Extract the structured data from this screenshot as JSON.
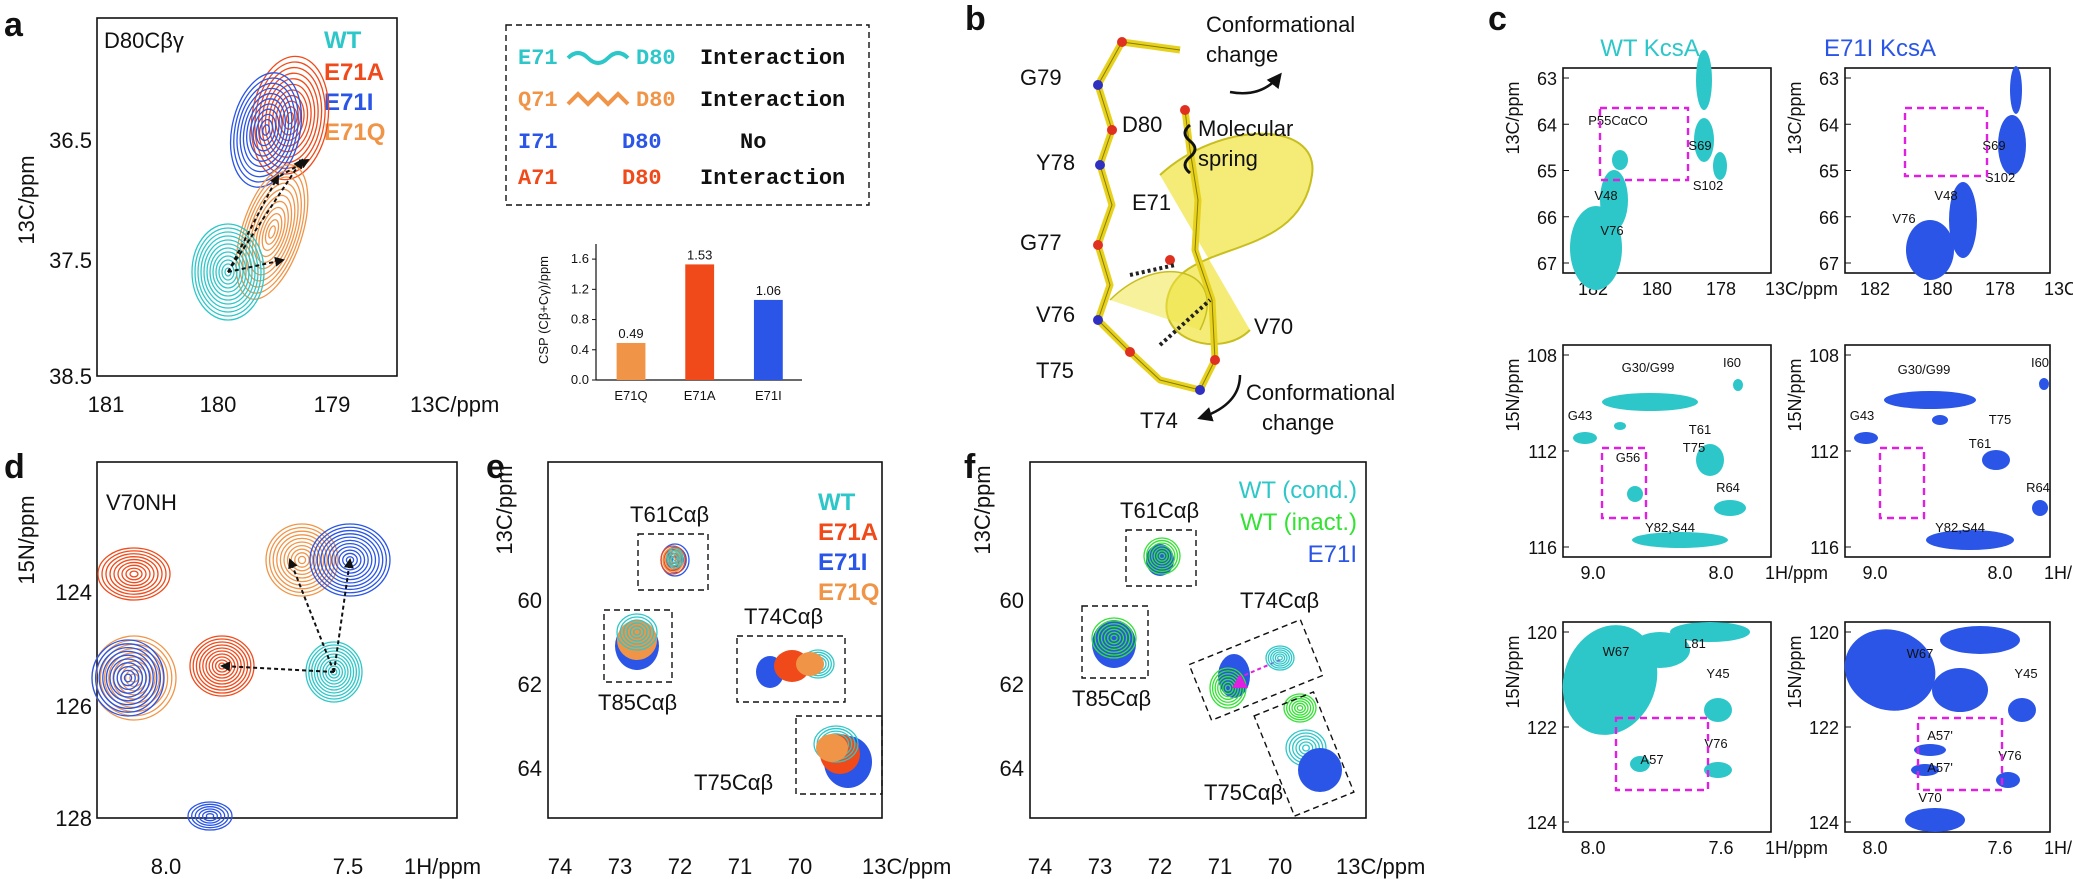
{
  "colors": {
    "wt": "#2ec7c9",
    "e71a": "#f04a1a",
    "e71i": "#2a55e6",
    "e71q": "#f09548",
    "wt_inact": "#33e233",
    "magenta": "#e020e0",
    "helix": "#f0e64a"
  },
  "panel_a": {
    "letter": "a",
    "title": "D80Cβγ",
    "legend": [
      "WT",
      "E71A",
      "E71I",
      "E71Q"
    ],
    "xlabel": "13C/ppm",
    "ylabel": "13C/ppm",
    "xticks": [
      "181",
      "180",
      "179"
    ],
    "yticks": [
      "36.5",
      "37.5",
      "38.5"
    ]
  },
  "interaction_box": {
    "row1": {
      "left": "E71",
      "right": "D80",
      "label": "Interaction"
    },
    "row2": {
      "left": "Q71",
      "right": "D80",
      "label": "Interaction"
    },
    "row3": {
      "left": "I71",
      "right": "D80",
      "label": "No"
    },
    "row4": {
      "left": "A71",
      "right": "D80",
      "label": "Interaction"
    }
  },
  "chart_data": [
    {
      "type": "bar",
      "title": "",
      "categories": [
        "E71Q",
        "E71A",
        "E71I"
      ],
      "values": [
        0.49,
        1.53,
        1.06
      ],
      "value_labels": [
        "0.49",
        "1.53",
        "1.06"
      ],
      "colors": [
        "#f09548",
        "#f04a1a",
        "#2a55e6"
      ],
      "ylabel": "CSP (Cβ+Cγ)/ppm",
      "xlabel": "",
      "ylim": [
        0,
        1.8
      ],
      "yticks": [
        "0.0",
        "0.4",
        "0.8",
        "1.2",
        "1.6"
      ]
    }
  ],
  "panel_b": {
    "letter": "b",
    "residues": [
      "G79",
      "Y78",
      "G77",
      "V76",
      "T75",
      "T74",
      "D80",
      "E71",
      "V70"
    ],
    "label_conf_top": [
      "Conformational",
      "change"
    ],
    "label_spring": [
      "Molecular",
      "spring"
    ],
    "label_conf_bottom": [
      "Conformational",
      "change"
    ]
  },
  "panel_c": {
    "letter": "c",
    "title_wt": "WT KcsA",
    "title_mut": "E71I KcsA",
    "row1": {
      "ylabel": "13C/ppm",
      "xlabel": "13C/ppm",
      "xticks": [
        "182",
        "180",
        "178"
      ],
      "yticks": [
        "63",
        "64",
        "65",
        "66",
        "67"
      ],
      "peaks_wt": [
        "P55CαCO",
        "S69",
        "S102",
        "V48",
        "V76"
      ],
      "peaks_mut": [
        "S69",
        "S102",
        "V48",
        "V76"
      ]
    },
    "row2": {
      "ylabel": "15N/ppm",
      "xlabel": "1H/ppm",
      "xticks": [
        "9.0",
        "8.0"
      ],
      "yticks": [
        "108",
        "112",
        "116"
      ],
      "peaks_wt": [
        "G30/G99",
        "I60",
        "G43",
        "T61",
        "T75",
        "G56",
        "R64",
        "Y82,S44"
      ],
      "peaks_mut": [
        "G30/G99",
        "I60",
        "G43",
        "T75",
        "T61",
        "R64",
        "Y82,S44"
      ]
    },
    "row3": {
      "ylabel": "15N/ppm",
      "xlabel": "1H/ppm",
      "xticks": [
        "8.0",
        "7.6"
      ],
      "yticks": [
        "120",
        "122",
        "124"
      ],
      "peaks_wt": [
        "W67",
        "L81",
        "Y45",
        "V76",
        "A57"
      ],
      "peaks_mut": [
        "W67",
        "Y45",
        "A57'",
        "A57'",
        "V76",
        "V70"
      ]
    }
  },
  "panel_d": {
    "letter": "d",
    "title": "V70NH",
    "xlabel": "1H/ppm",
    "ylabel": "15N/ppm",
    "xticks": [
      "8.0",
      "7.5"
    ],
    "yticks": [
      "124",
      "126",
      "128"
    ]
  },
  "panel_e": {
    "letter": "e",
    "legend": [
      "WT",
      "E71A",
      "E71I",
      "E71Q"
    ],
    "xlabel": "13C/ppm",
    "ylabel": "13C/ppm",
    "xticks": [
      "74",
      "73",
      "72",
      "71",
      "70"
    ],
    "yticks": [
      "60",
      "62",
      "64"
    ],
    "peaks": [
      "T61Cαβ",
      "T85Cαβ",
      "T74Cαβ",
      "T75Cαβ"
    ]
  },
  "panel_f": {
    "letter": "f",
    "legend": [
      "WT (cond.)",
      "WT (inact.)",
      "E71I"
    ],
    "xlabel": "13C/ppm",
    "ylabel": "13C/ppm",
    "xticks": [
      "74",
      "73",
      "72",
      "71",
      "70"
    ],
    "yticks": [
      "60",
      "62",
      "64"
    ],
    "peaks": [
      "T61Cαβ",
      "T85Cαβ",
      "T74Cαβ",
      "T75Cαβ"
    ]
  }
}
